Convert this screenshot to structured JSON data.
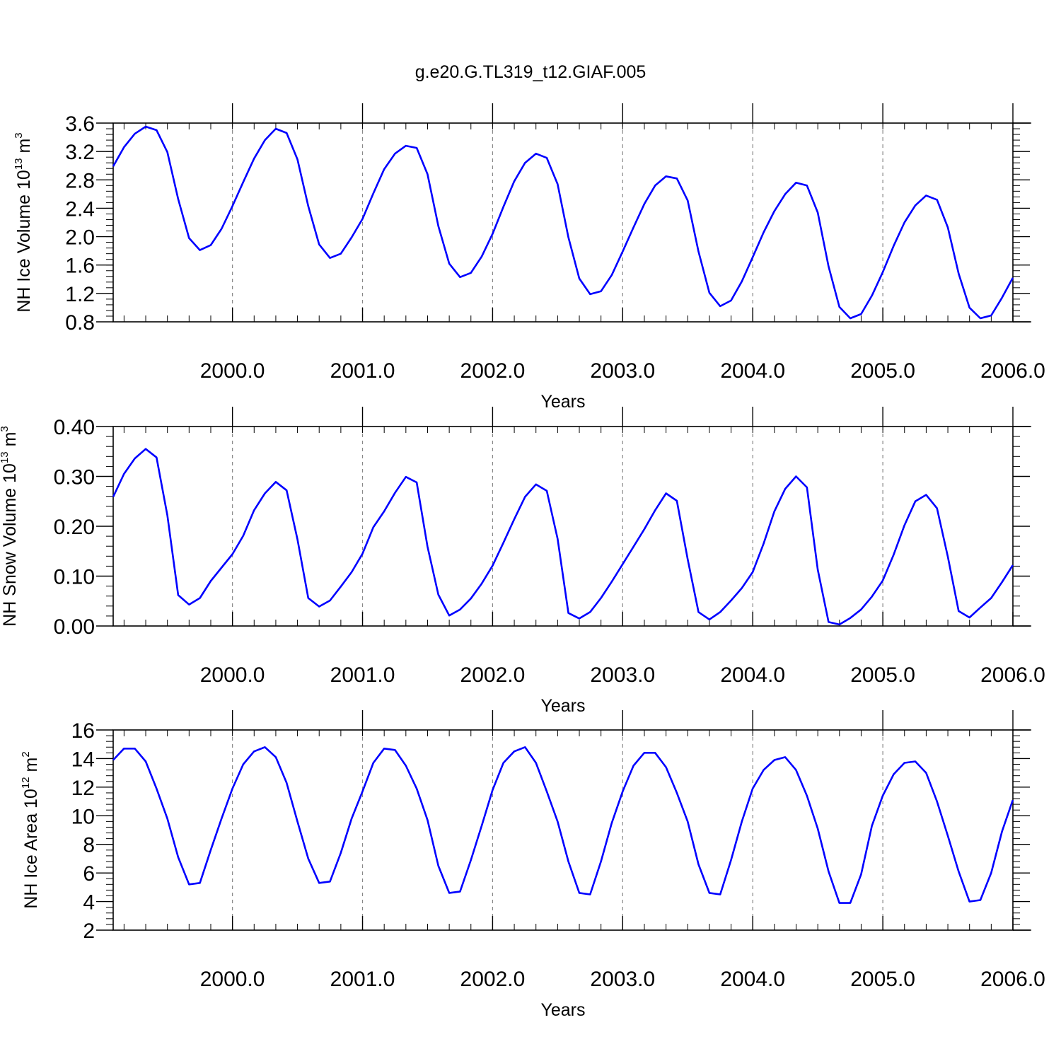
{
  "title": "g.e20.G.TL319_t12.GIAF.005",
  "colors": {
    "series": "#0000ff",
    "axes": "#000000",
    "gridline": "#888888"
  },
  "chart_data": [
    {
      "type": "line",
      "ylabel": {
        "text": "NH Ice Volume 10",
        "sup": "13",
        "unit": " m",
        "unit_sup": "3"
      },
      "xlabel": "Years",
      "xlim": [
        1999.083,
        2006.0
      ],
      "ylim": [
        0.8,
        3.6
      ],
      "xticks": [
        2000.0,
        2001.0,
        2002.0,
        2003.0,
        2004.0,
        2005.0,
        2006.0
      ],
      "xtick_labels": [
        "2000.0",
        "2001.0",
        "2002.0",
        "2003.0",
        "2004.0",
        "2005.0",
        "2006.0"
      ],
      "yticks": [
        0.8,
        1.2,
        1.6,
        2.0,
        2.4,
        2.8,
        3.2,
        3.6
      ],
      "ytick_labels": [
        "0.8",
        "1.2",
        "1.6",
        "2.0",
        "2.4",
        "2.8",
        "3.2",
        "3.6"
      ],
      "ymajor_step": 0.4,
      "yminor_step": 0.08,
      "grid": "vertical-dashed",
      "x_start": 1999.083,
      "x_step": 0.0833333,
      "values": [
        2.99,
        3.26,
        3.45,
        3.55,
        3.5,
        3.19,
        2.53,
        1.98,
        1.81,
        1.88,
        2.11,
        2.43,
        2.77,
        3.1,
        3.36,
        3.52,
        3.46,
        3.09,
        2.43,
        1.89,
        1.7,
        1.76,
        1.99,
        2.25,
        2.61,
        2.95,
        3.17,
        3.28,
        3.25,
        2.88,
        2.15,
        1.62,
        1.43,
        1.49,
        1.72,
        2.04,
        2.42,
        2.78,
        3.04,
        3.17,
        3.11,
        2.74,
        1.99,
        1.41,
        1.19,
        1.23,
        1.46,
        1.79,
        2.13,
        2.46,
        2.72,
        2.85,
        2.82,
        2.51,
        1.79,
        1.21,
        1.02,
        1.1,
        1.37,
        1.71,
        2.06,
        2.36,
        2.6,
        2.76,
        2.72,
        2.34,
        1.58,
        1.01,
        0.85,
        0.91,
        1.17,
        1.5,
        1.87,
        2.2,
        2.44,
        2.58,
        2.52,
        2.13,
        1.48,
        1.0,
        0.85,
        0.89,
        1.14,
        1.42
      ]
    },
    {
      "type": "line",
      "ylabel": {
        "text": "NH Snow Volume 10",
        "sup": "13",
        "unit": " m",
        "unit_sup": "3"
      },
      "xlabel": "Years",
      "xlim": [
        1999.083,
        2006.0
      ],
      "ylim": [
        0.0,
        0.4
      ],
      "xticks": [
        2000.0,
        2001.0,
        2002.0,
        2003.0,
        2004.0,
        2005.0,
        2006.0
      ],
      "xtick_labels": [
        "2000.0",
        "2001.0",
        "2002.0",
        "2003.0",
        "2004.0",
        "2005.0",
        "2006.0"
      ],
      "yticks": [
        0.0,
        0.1,
        0.2,
        0.3,
        0.4
      ],
      "ytick_labels": [
        "0.00",
        "0.10",
        "0.20",
        "0.30",
        "0.40"
      ],
      "ymajor_step": 0.1,
      "yminor_step": 0.02,
      "grid": "vertical-dashed",
      "x_start": 1999.083,
      "x_step": 0.0833333,
      "values": [
        0.259,
        0.305,
        0.336,
        0.355,
        0.338,
        0.222,
        0.062,
        0.043,
        0.056,
        0.09,
        0.117,
        0.144,
        0.181,
        0.232,
        0.266,
        0.289,
        0.272,
        0.174,
        0.056,
        0.039,
        0.051,
        0.079,
        0.108,
        0.145,
        0.198,
        0.23,
        0.267,
        0.299,
        0.288,
        0.159,
        0.063,
        0.021,
        0.033,
        0.055,
        0.085,
        0.121,
        0.167,
        0.214,
        0.259,
        0.284,
        0.271,
        0.175,
        0.026,
        0.015,
        0.028,
        0.056,
        0.089,
        0.124,
        0.159,
        0.194,
        0.232,
        0.266,
        0.251,
        0.134,
        0.028,
        0.013,
        0.028,
        0.051,
        0.076,
        0.108,
        0.165,
        0.23,
        0.275,
        0.3,
        0.278,
        0.113,
        0.008,
        0.003,
        0.016,
        0.033,
        0.059,
        0.091,
        0.143,
        0.202,
        0.25,
        0.263,
        0.236,
        0.139,
        0.03,
        0.017,
        0.037,
        0.056,
        0.088,
        0.122
      ]
    },
    {
      "type": "line",
      "ylabel": {
        "text": "NH Ice Area 10",
        "sup": "12",
        "unit": " m",
        "unit_sup": "2"
      },
      "xlabel": "Years",
      "xlim": [
        1999.083,
        2006.0
      ],
      "ylim": [
        2,
        16
      ],
      "xticks": [
        2000.0,
        2001.0,
        2002.0,
        2003.0,
        2004.0,
        2005.0,
        2006.0
      ],
      "xtick_labels": [
        "2000.0",
        "2001.0",
        "2002.0",
        "2003.0",
        "2004.0",
        "2005.0",
        "2006.0"
      ],
      "yticks": [
        2,
        4,
        6,
        8,
        10,
        12,
        14,
        16
      ],
      "ytick_labels": [
        "2",
        "4",
        "6",
        "8",
        "10",
        "12",
        "14",
        "16"
      ],
      "ymajor_step": 2,
      "yminor_step": 0.4,
      "grid": "vertical-dashed",
      "x_start": 1999.083,
      "x_step": 0.0833333,
      "values": [
        13.9,
        14.7,
        14.7,
        13.8,
        11.9,
        9.8,
        7.1,
        5.2,
        5.3,
        7.6,
        9.8,
        11.9,
        13.6,
        14.5,
        14.8,
        14.1,
        12.3,
        9.6,
        7.0,
        5.3,
        5.4,
        7.4,
        9.8,
        11.7,
        13.7,
        14.7,
        14.6,
        13.5,
        11.9,
        9.7,
        6.5,
        4.6,
        4.7,
        6.9,
        9.3,
        11.8,
        13.7,
        14.5,
        14.8,
        13.7,
        11.7,
        9.6,
        6.8,
        4.6,
        4.5,
        6.8,
        9.5,
        11.7,
        13.5,
        14.4,
        14.4,
        13.4,
        11.6,
        9.6,
        6.6,
        4.6,
        4.5,
        6.9,
        9.6,
        11.9,
        13.2,
        13.9,
        14.1,
        13.2,
        11.4,
        9.1,
        6.1,
        3.9,
        3.9,
        5.9,
        9.3,
        11.4,
        12.9,
        13.7,
        13.8,
        13.0,
        11.0,
        8.6,
        6.1,
        4.0,
        4.1,
        6.0,
        8.9,
        11.1
      ]
    }
  ]
}
